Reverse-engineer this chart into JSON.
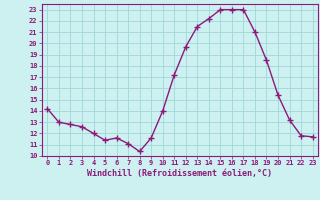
{
  "x": [
    0,
    1,
    2,
    3,
    4,
    5,
    6,
    7,
    8,
    9,
    10,
    11,
    12,
    13,
    14,
    15,
    16,
    17,
    18,
    19,
    20,
    21,
    22,
    23
  ],
  "y": [
    14.2,
    13.0,
    12.8,
    12.6,
    12.0,
    11.4,
    11.6,
    11.1,
    10.4,
    11.6,
    14.0,
    17.2,
    19.7,
    21.5,
    22.2,
    23.0,
    23.0,
    23.0,
    21.0,
    18.5,
    15.4,
    13.2,
    11.8,
    11.7
  ],
  "xlim": [
    -0.5,
    23.5
  ],
  "ylim": [
    10,
    23.5
  ],
  "yticks": [
    10,
    11,
    12,
    13,
    14,
    15,
    16,
    17,
    18,
    19,
    20,
    21,
    22,
    23
  ],
  "xticks": [
    0,
    1,
    2,
    3,
    4,
    5,
    6,
    7,
    8,
    9,
    10,
    11,
    12,
    13,
    14,
    15,
    16,
    17,
    18,
    19,
    20,
    21,
    22,
    23
  ],
  "line_color": "#8b1a7a",
  "marker": "+",
  "bg_color": "#cdf0f0",
  "grid_color": "#a0d8d8",
  "xlabel": "Windchill (Refroidissement éolien,°C)",
  "xlabel_color": "#8b1a7a",
  "tick_color": "#8b1a7a",
  "axis_color": "#8b1a7a",
  "marker_size": 4,
  "line_width": 1.0
}
